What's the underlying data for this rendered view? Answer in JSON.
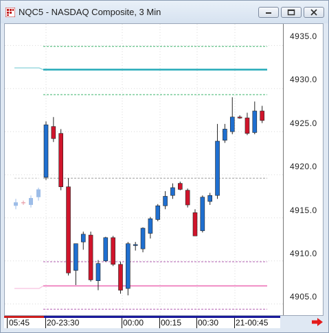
{
  "window": {
    "title": "NQC5 - NASDAQ Composite, 3 Min"
  },
  "price_axis": {
    "ticks": [
      "4935.0",
      "4930.0",
      "4925.0",
      "4920.0",
      "4915.0",
      "4910.0",
      "4905.0"
    ]
  },
  "time_axis": {
    "labels": [
      "05:45",
      "20-23:30",
      "00:00",
      "00:15",
      "00:30",
      "21-00:45"
    ]
  },
  "colors": {
    "up": "#1f6fd0",
    "down": "#d0142b",
    "teal": "#22aab8",
    "green": "#3ab36b",
    "gray": "#999999",
    "magenta": "#b25db0",
    "pink": "#f08ac4"
  },
  "chart_data": {
    "type": "candlestick",
    "ylim": [
      4903.7,
      4937.5
    ],
    "prev_session": [
      {
        "o": 4916.4,
        "h": 4917.2,
        "l": 4916.0,
        "c": 4916.8
      },
      {
        "o": 4916.8,
        "h": 4917.0,
        "l": 4916.5,
        "c": 4916.7
      },
      {
        "o": 4916.5,
        "h": 4917.6,
        "l": 4916.2,
        "c": 4917.3
      },
      {
        "o": 4917.4,
        "h": 4918.5,
        "l": 4917.0,
        "c": 4918.3
      }
    ],
    "candles": [
      {
        "o": 4919.7,
        "h": 4926.2,
        "l": 4919.4,
        "c": 4925.8
      },
      {
        "o": 4925.6,
        "h": 4926.7,
        "l": 4923.8,
        "c": 4924.2
      },
      {
        "o": 4924.8,
        "h": 4925.3,
        "l": 4918.2,
        "c": 4918.6
      },
      {
        "o": 4918.6,
        "h": 4919.6,
        "l": 4908.3,
        "c": 4908.6
      },
      {
        "o": 4908.9,
        "h": 4912.0,
        "l": 4907.2,
        "c": 4912.0
      },
      {
        "o": 4912.2,
        "h": 4913.4,
        "l": 4911.3,
        "c": 4913.1
      },
      {
        "o": 4913.0,
        "h": 4913.4,
        "l": 4907.6,
        "c": 4907.8
      },
      {
        "o": 4907.7,
        "h": 4910.1,
        "l": 4906.6,
        "c": 4909.7
      },
      {
        "o": 4910.0,
        "h": 4912.8,
        "l": 4909.9,
        "c": 4912.7
      },
      {
        "o": 4912.7,
        "h": 4912.9,
        "l": 4909.4,
        "c": 4909.6
      },
      {
        "o": 4909.6,
        "h": 4909.9,
        "l": 4906.2,
        "c": 4906.6
      },
      {
        "o": 4906.8,
        "h": 4912.2,
        "l": 4906.0,
        "c": 4912.0
      },
      {
        "o": 4911.8,
        "h": 4912.2,
        "l": 4911.2,
        "c": 4911.9
      },
      {
        "o": 4911.4,
        "h": 4913.9,
        "l": 4911.0,
        "c": 4913.8
      },
      {
        "o": 4913.2,
        "h": 4915.1,
        "l": 4912.6,
        "c": 4914.9
      },
      {
        "o": 4914.8,
        "h": 4916.6,
        "l": 4914.6,
        "c": 4916.4
      },
      {
        "o": 4916.4,
        "h": 4918.1,
        "l": 4916.0,
        "c": 4917.5
      },
      {
        "o": 4917.6,
        "h": 4919.0,
        "l": 4917.2,
        "c": 4918.5
      },
      {
        "o": 4919.0,
        "h": 4919.2,
        "l": 4918.2,
        "c": 4918.3
      },
      {
        "o": 4918.2,
        "h": 4918.4,
        "l": 4916.2,
        "c": 4916.5
      },
      {
        "o": 4915.6,
        "h": 4916.0,
        "l": 4912.9,
        "c": 4912.9
      },
      {
        "o": 4913.5,
        "h": 4917.6,
        "l": 4913.3,
        "c": 4917.4
      },
      {
        "o": 4916.9,
        "h": 4917.9,
        "l": 4916.5,
        "c": 4917.6
      },
      {
        "o": 4917.6,
        "h": 4925.9,
        "l": 4917.2,
        "c": 4923.9
      },
      {
        "o": 4924.0,
        "h": 4925.9,
        "l": 4923.7,
        "c": 4925.3
      },
      {
        "o": 4925.0,
        "h": 4929.0,
        "l": 4924.7,
        "c": 4926.7
      },
      {
        "o": 4926.7,
        "h": 4926.9,
        "l": 4926.5,
        "c": 4926.6
      },
      {
        "o": 4926.6,
        "h": 4927.2,
        "l": 4924.6,
        "c": 4924.8
      },
      {
        "o": 4924.9,
        "h": 4928.5,
        "l": 4924.7,
        "c": 4927.4
      },
      {
        "o": 4927.4,
        "h": 4928.0,
        "l": 4926.0,
        "c": 4926.3
      }
    ],
    "levels": [
      {
        "name": "upper-green",
        "value": 4934.9,
        "color": "#3ab36b",
        "style": "dashed"
      },
      {
        "name": "teal",
        "value": 4932.2,
        "color": "#22aab8",
        "style": "solid-thick",
        "prev_value": 4932.4
      },
      {
        "name": "mid-green",
        "value": 4929.3,
        "color": "#3ab36b",
        "style": "dashed"
      },
      {
        "name": "gray",
        "value": 4919.6,
        "color": "#999999",
        "style": "dashed"
      },
      {
        "name": "magenta",
        "value": 4909.9,
        "color": "#b25db0",
        "style": "dashed"
      },
      {
        "name": "pink",
        "value": 4907.1,
        "color": "#f08ac4",
        "style": "solid",
        "prev_value": 4906.8
      },
      {
        "name": "lower-magenta",
        "value": 4904.4,
        "color": "#b25db0",
        "style": "dashed"
      }
    ]
  }
}
